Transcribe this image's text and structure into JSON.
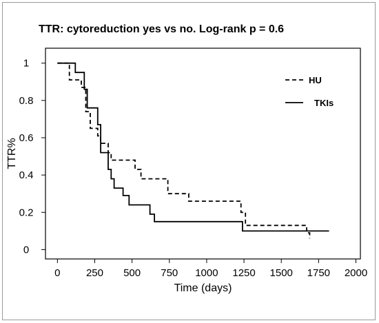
{
  "chart_data": {
    "type": "line",
    "title": "TTR: cytoreduction yes vs no. Log-rank p = 0.6",
    "xlabel": "Time (days)",
    "ylabel": "TTR%",
    "xlim": [
      -80,
      2030
    ],
    "ylim": [
      -0.05,
      1.08
    ],
    "xticks": [
      0,
      250,
      500,
      750,
      1000,
      1250,
      1500,
      1750,
      2000
    ],
    "yticks": [
      0,
      0.2,
      0.4,
      0.6,
      0.8,
      1
    ],
    "xtick_labels": [
      "0",
      "250",
      "500",
      "750",
      "1000",
      "1250",
      "1500",
      "1750",
      "2000"
    ],
    "ytick_labels": [
      "0",
      "0.2",
      "0.4",
      "0.6",
      "0.8",
      "1"
    ],
    "legend_position": "top-right",
    "grid": false,
    "step": true,
    "series": [
      {
        "name": "HU",
        "style": "dashed",
        "color": "#000000",
        "x": [
          0,
          80,
          160,
          190,
          220,
          270,
          290,
          340,
          360,
          520,
          560,
          740,
          880,
          1230,
          1260,
          1670,
          1690
        ],
        "y": [
          1,
          0.91,
          0.87,
          0.74,
          0.65,
          0.61,
          0.57,
          0.52,
          0.48,
          0.43,
          0.38,
          0.3,
          0.26,
          0.2,
          0.13,
          0.09,
          0.06
        ]
      },
      {
        "name": "TKIs",
        "style": "solid",
        "color": "#000000",
        "x": [
          0,
          120,
          180,
          200,
          270,
          290,
          340,
          360,
          380,
          440,
          480,
          620,
          650,
          1240,
          1820
        ],
        "y": [
          1,
          0.95,
          0.86,
          0.76,
          0.67,
          0.52,
          0.43,
          0.38,
          0.33,
          0.29,
          0.24,
          0.19,
          0.15,
          0.1,
          0.1
        ]
      }
    ]
  }
}
